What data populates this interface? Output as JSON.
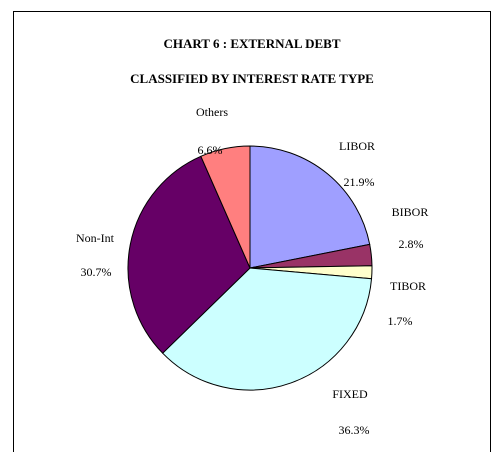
{
  "chart_data": {
    "type": "pie",
    "title": "CHART 6 : EXTERNAL DEBT",
    "subtitle": "CLASSIFIED BY INTEREST RATE TYPE",
    "slices": [
      {
        "name": "LIBOR",
        "value": 21.9,
        "label": "21.9%",
        "color": "#9f9fff"
      },
      {
        "name": "BIBOR",
        "value": 2.8,
        "label": "2.8%",
        "color": "#993366"
      },
      {
        "name": "TIBOR",
        "value": 1.7,
        "label": "1.7%",
        "color": "#ffffcc"
      },
      {
        "name": "FIXED",
        "value": 36.3,
        "label": "36.3%",
        "color": "#ccffff"
      },
      {
        "name": "Non-Int",
        "value": 30.7,
        "label": "30.7%",
        "color": "#660066"
      },
      {
        "name": "Others",
        "value": 6.6,
        "label": "6.6%",
        "color": "#ff7f7f"
      }
    ],
    "start_angle_deg": 0,
    "direction": "clockwise",
    "legend": "none"
  }
}
